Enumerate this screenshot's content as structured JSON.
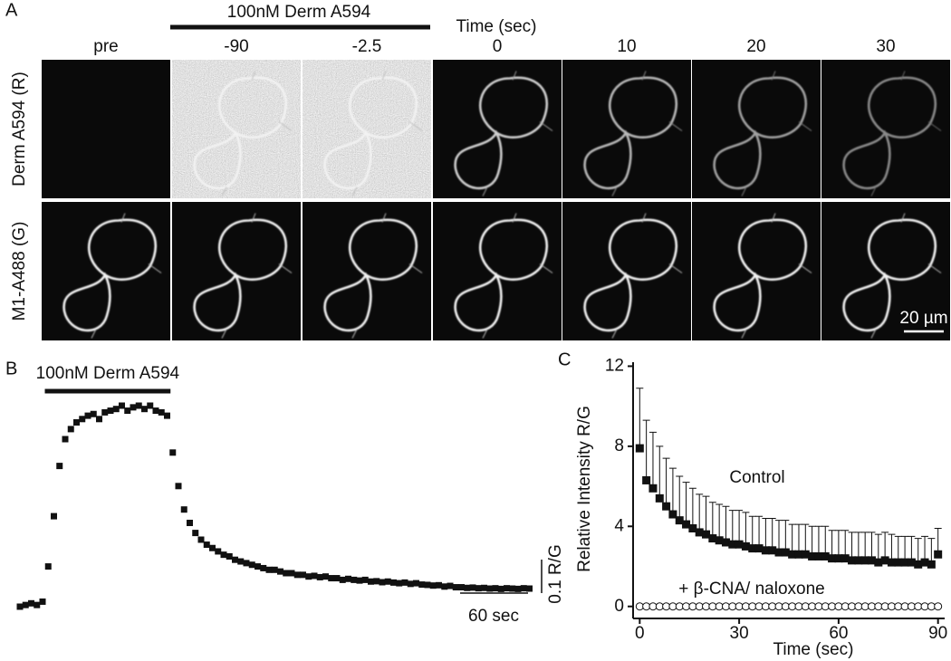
{
  "panel_a": {
    "label": "A",
    "treatment": "100nM Derm A594",
    "time_label": "Time (sec)",
    "columns": [
      "pre",
      "-90",
      "-2.5",
      "0",
      "10",
      "20",
      "30"
    ],
    "rows": [
      "Derm A594 (R)",
      "M1-A488 (G)"
    ],
    "scale_bar": "20 µm"
  },
  "chart_data": [
    {
      "type": "scatter",
      "panel": "B",
      "color": "#111111",
      "treatment": {
        "label": "100nM Derm A594",
        "start": 22,
        "end": 133
      },
      "x": [
        0,
        5,
        10,
        15,
        20,
        25,
        30,
        35,
        40,
        45,
        50,
        55,
        60,
        65,
        70,
        75,
        80,
        85,
        90,
        95,
        100,
        105,
        110,
        115,
        120,
        125,
        130,
        135,
        140,
        145,
        150,
        155,
        160,
        165,
        170,
        175,
        180,
        185,
        190,
        195,
        200,
        205,
        210,
        215,
        220,
        225,
        230,
        235,
        240,
        245,
        250,
        255,
        260,
        265,
        270,
        275,
        280,
        285,
        290,
        295,
        300,
        305,
        310,
        315,
        320,
        325,
        330,
        335,
        340,
        345,
        350,
        355,
        360,
        365,
        370,
        375,
        380,
        385,
        390,
        395,
        400,
        405,
        410,
        415,
        420,
        425,
        430,
        435,
        440,
        445,
        450
      ],
      "values": [
        0,
        0.005,
        0.01,
        0.005,
        0.015,
        0.12,
        0.27,
        0.42,
        0.5,
        0.53,
        0.55,
        0.56,
        0.57,
        0.575,
        0.56,
        0.58,
        0.585,
        0.59,
        0.6,
        0.585,
        0.595,
        0.6,
        0.59,
        0.6,
        0.585,
        0.58,
        0.57,
        0.46,
        0.36,
        0.29,
        0.25,
        0.22,
        0.2,
        0.185,
        0.175,
        0.165,
        0.155,
        0.15,
        0.14,
        0.135,
        0.13,
        0.125,
        0.12,
        0.115,
        0.11,
        0.11,
        0.105,
        0.1,
        0.1,
        0.095,
        0.095,
        0.09,
        0.092,
        0.088,
        0.09,
        0.085,
        0.085,
        0.08,
        0.083,
        0.08,
        0.078,
        0.08,
        0.075,
        0.076,
        0.073,
        0.075,
        0.072,
        0.07,
        0.072,
        0.068,
        0.07,
        0.066,
        0.065,
        0.063,
        0.064,
        0.06,
        0.062,
        0.058,
        0.058,
        0.056,
        0.057,
        0.055,
        0.056,
        0.054,
        0.055,
        0.053,
        0.055,
        0.054,
        0.053,
        0.055,
        0.054
      ],
      "scale_bars": {
        "x": {
          "value": 60,
          "label": "60 sec"
        },
        "y": {
          "value": 0.1,
          "label": "0.1 R/G"
        }
      }
    },
    {
      "type": "scatter",
      "panel": "C",
      "xlabel": "Time (sec)",
      "ylabel": "Relative Intensity R/G",
      "xlim": [
        -2,
        92
      ],
      "ylim": [
        -0.6,
        12.2
      ],
      "xticks": [
        0,
        30,
        60,
        90
      ],
      "yticks": [
        0,
        4,
        8,
        12
      ],
      "x": [
        0,
        2,
        4,
        6,
        8,
        10,
        12,
        14,
        16,
        18,
        20,
        22,
        24,
        26,
        28,
        30,
        32,
        34,
        36,
        38,
        40,
        42,
        44,
        46,
        48,
        50,
        52,
        54,
        56,
        58,
        60,
        62,
        64,
        66,
        68,
        70,
        72,
        74,
        76,
        78,
        80,
        82,
        84,
        86,
        88,
        90
      ],
      "series": [
        {
          "name": "Control",
          "marker": "square",
          "color": "#111111",
          "values": [
            7.9,
            6.3,
            5.9,
            5.4,
            5.0,
            4.6,
            4.3,
            4.1,
            3.9,
            3.7,
            3.6,
            3.4,
            3.3,
            3.2,
            3.1,
            3.1,
            3.0,
            2.9,
            2.9,
            2.8,
            2.8,
            2.7,
            2.7,
            2.6,
            2.6,
            2.6,
            2.5,
            2.5,
            2.5,
            2.4,
            2.4,
            2.4,
            2.3,
            2.3,
            2.3,
            2.3,
            2.2,
            2.3,
            2.2,
            2.2,
            2.2,
            2.2,
            2.1,
            2.2,
            2.1,
            2.6
          ],
          "errors": [
            3.0,
            3.0,
            2.8,
            2.6,
            2.4,
            2.3,
            2.2,
            2.1,
            2.0,
            1.9,
            1.9,
            1.8,
            1.8,
            1.8,
            1.7,
            1.7,
            1.7,
            1.6,
            1.6,
            1.6,
            1.6,
            1.6,
            1.6,
            1.5,
            1.5,
            1.5,
            1.5,
            1.5,
            1.5,
            1.4,
            1.4,
            1.4,
            1.4,
            1.4,
            1.4,
            1.4,
            1.4,
            1.4,
            1.4,
            1.3,
            1.3,
            1.3,
            1.3,
            1.3,
            1.3,
            1.3
          ]
        },
        {
          "name": "+ β-CNA/ naloxone",
          "marker": "circle",
          "color": "#111111",
          "values": [
            0,
            0,
            0,
            0,
            0,
            0,
            0,
            0,
            0,
            0,
            0,
            0,
            0,
            0,
            0,
            0,
            0,
            0,
            0,
            0,
            0,
            0,
            0,
            0,
            0,
            0,
            0,
            0,
            0,
            0,
            0,
            0,
            0,
            0,
            0,
            0,
            0,
            0,
            0,
            0,
            0,
            0,
            0,
            0,
            0,
            0
          ]
        }
      ]
    }
  ]
}
